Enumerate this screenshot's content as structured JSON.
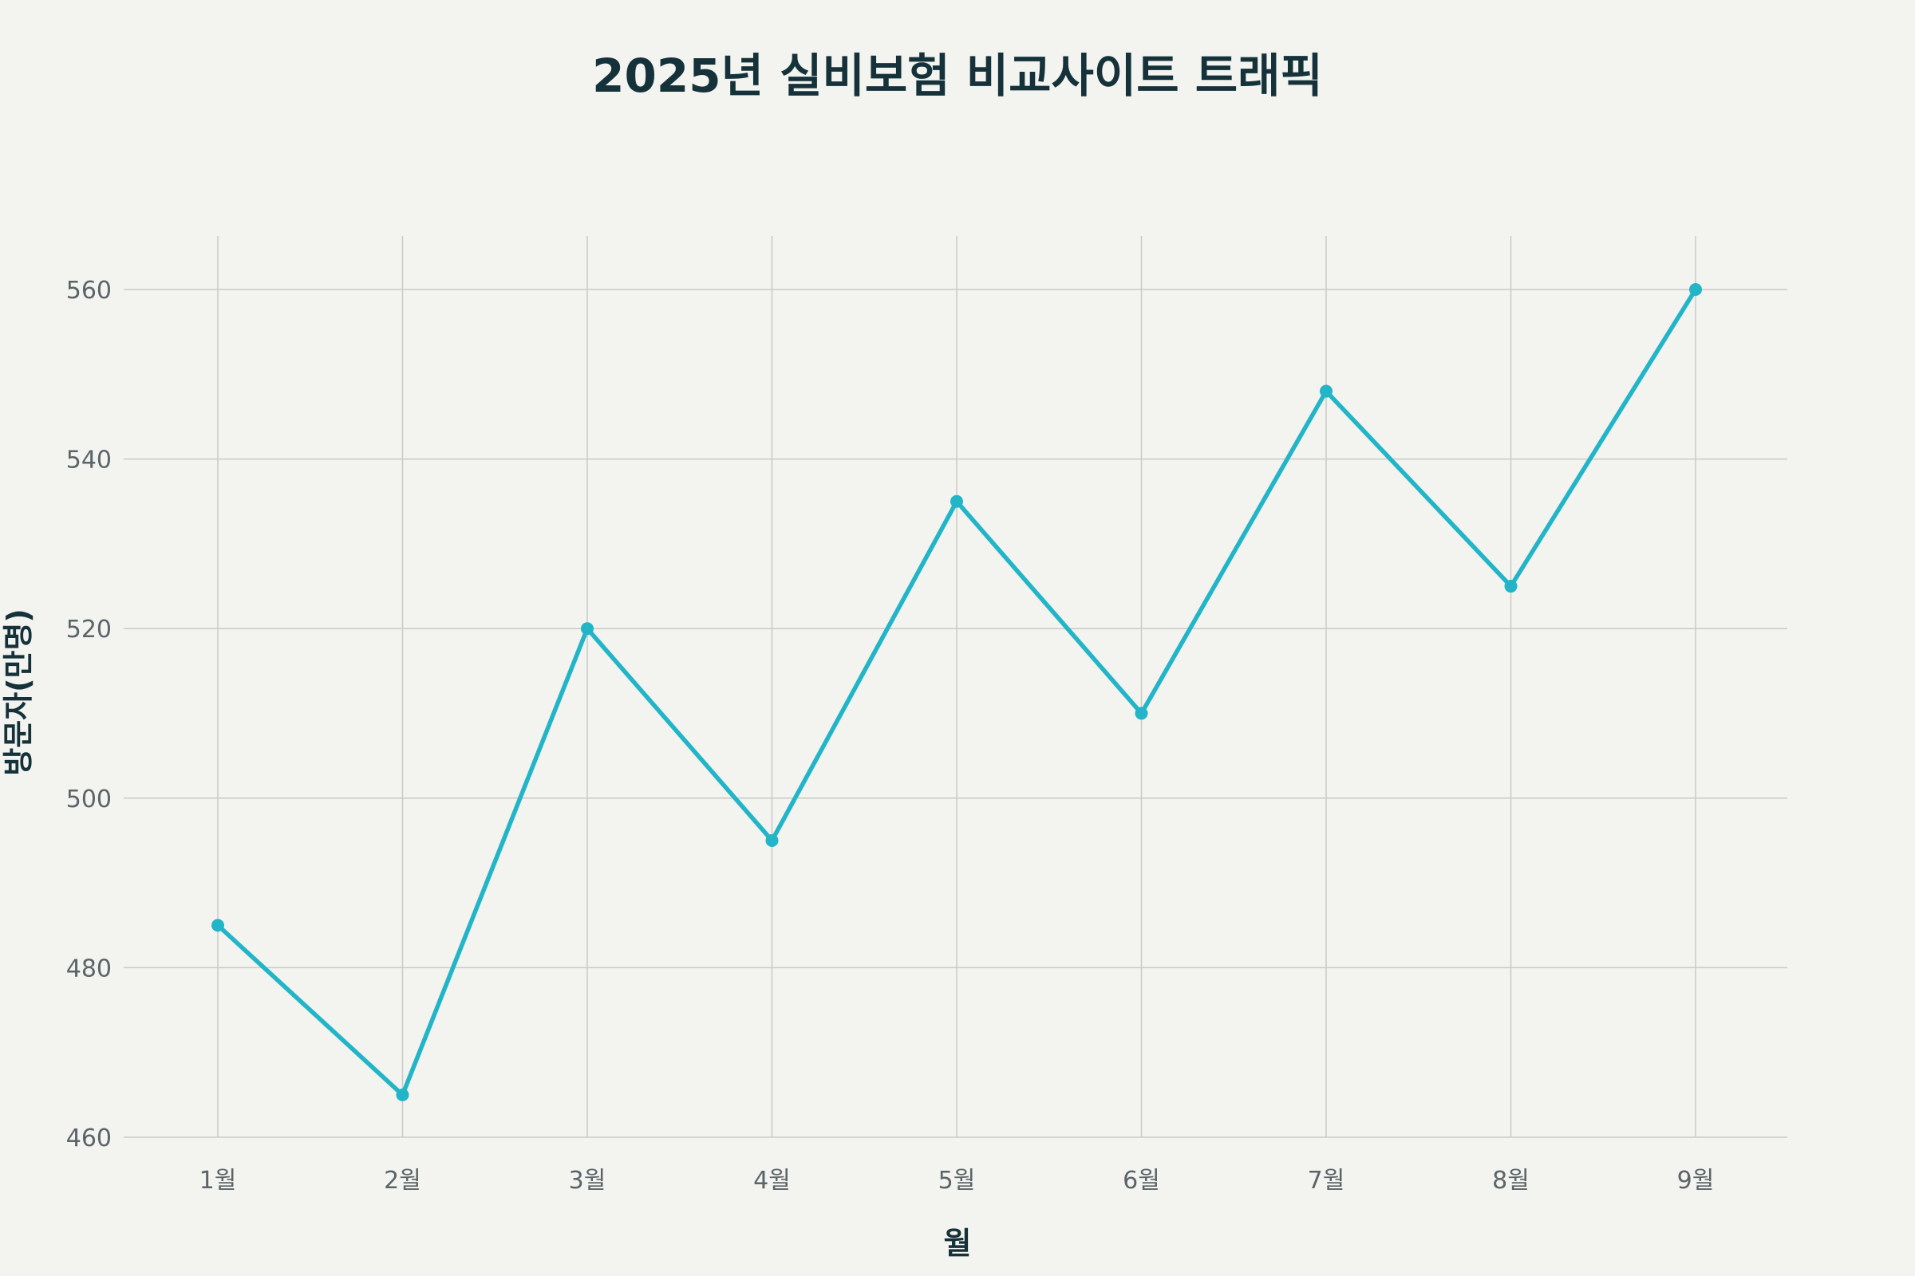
{
  "chart_data": {
    "type": "line",
    "title": "2025년 실비보험 비교사이트 트래픽",
    "xlabel": "월",
    "ylabel": "방문자(만명)",
    "categories": [
      "1월",
      "2월",
      "3월",
      "4월",
      "5월",
      "6월",
      "7월",
      "8월",
      "9월"
    ],
    "ylim": [
      460,
      560
    ],
    "yticks": [
      460,
      480,
      500,
      520,
      540,
      560
    ],
    "grid": true,
    "series": [
      {
        "values": [
          485,
          465,
          520,
          495,
          535,
          510,
          548,
          525,
          560
        ],
        "color": "#22b5c8"
      }
    ]
  }
}
